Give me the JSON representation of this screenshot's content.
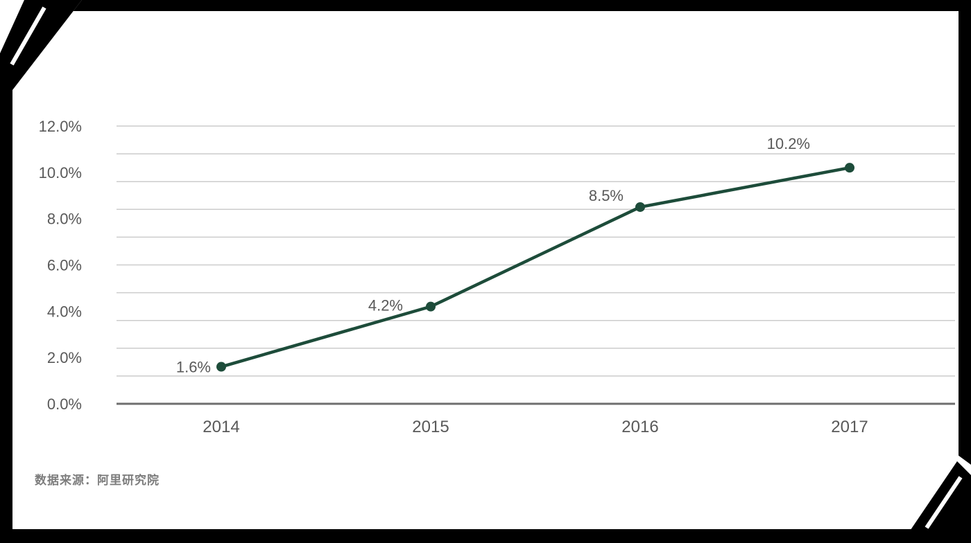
{
  "page": {
    "background": "#ffffff",
    "frame_color": "#000000"
  },
  "source_note": "数据来源：阿里研究院",
  "chart_data": {
    "type": "line",
    "title": "",
    "xlabel": "",
    "ylabel": "",
    "categories": [
      "2014",
      "2015",
      "2016",
      "2017"
    ],
    "values": [
      1.6,
      4.2,
      8.5,
      10.2
    ],
    "data_labels": [
      "1.6%",
      "4.2%",
      "8.5%",
      "10.2%"
    ],
    "y_ticks": [
      "12.0%",
      "10.0%",
      "8.0%",
      "6.0%",
      "4.0%",
      "2.0%",
      "0.0%"
    ],
    "y_tick_values": [
      12,
      10,
      8,
      6,
      4,
      2,
      0
    ],
    "ylim": [
      0,
      12
    ],
    "grid": "on",
    "gridline_count": 11,
    "legend_position": "none",
    "colors": {
      "line": "#1d4c3a",
      "marker": "#1d4c3a",
      "gridline": "#cccccc",
      "axis_line": "#6e6e6e",
      "tick_label": "#595959",
      "data_label": "#595959"
    }
  }
}
